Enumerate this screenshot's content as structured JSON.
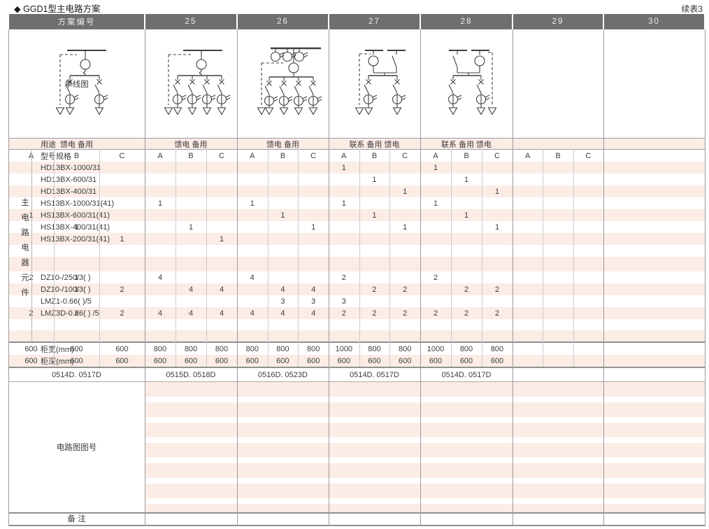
{
  "page": {
    "title": "◆ GGD1型主电路方案",
    "continuation": "续表3"
  },
  "colors": {
    "stripe_pink": "#fbece6",
    "header_bg": "#6f6f6f",
    "grid_line": "#9b9b9b",
    "diagram_stroke": "#3f3f3f"
  },
  "header": {
    "label": "方案编号",
    "schemes": [
      "25",
      "26",
      "27",
      "28",
      "29",
      "30"
    ]
  },
  "left": {
    "diagram_row_label": "单线图",
    "vertical_label": "主电路电器元件",
    "usage_label": "用途",
    "spec_label": "型号规格",
    "circuit_no_label": "电路图图号",
    "remarks_label": "备 注"
  },
  "rows": {
    "usage_values": [
      "馈电 备用",
      "馈电 备用",
      "馈电 备用",
      "联系 备用 馈电",
      "联系 备用 馈电",
      ""
    ],
    "subcols": [
      "A",
      "B",
      "C"
    ],
    "components": [
      {
        "name": "HD13BX-1000/31",
        "cells": [
          [
            "",
            "",
            ""
          ],
          [
            "",
            "",
            ""
          ],
          [
            "",
            "",
            ""
          ],
          [
            "1",
            "",
            ""
          ],
          [
            "1",
            "",
            ""
          ],
          [
            "",
            "",
            ""
          ]
        ]
      },
      {
        "name": "HD13BX-600/31",
        "cells": [
          [
            "",
            "",
            ""
          ],
          [
            "",
            "",
            ""
          ],
          [
            "",
            "",
            ""
          ],
          [
            "",
            "1",
            ""
          ],
          [
            "",
            "1",
            ""
          ],
          [
            "",
            "",
            ""
          ]
        ]
      },
      {
        "name": "HD13BX-400/31",
        "cells": [
          [
            "",
            "",
            ""
          ],
          [
            "",
            "",
            ""
          ],
          [
            "",
            "",
            ""
          ],
          [
            "",
            "",
            "1"
          ],
          [
            "",
            "",
            "1"
          ],
          [
            "",
            "",
            ""
          ]
        ]
      },
      {
        "name": "HS13BX-1000/31(41)",
        "cells": [
          [
            "",
            "",
            ""
          ],
          [
            "1",
            "",
            ""
          ],
          [
            "1",
            "",
            ""
          ],
          [
            "1",
            "",
            ""
          ],
          [
            "1",
            "",
            ""
          ],
          [
            "",
            "",
            ""
          ]
        ]
      },
      {
        "name": "HS13BX-600/31(41)",
        "cells": [
          [
            "1",
            "",
            ""
          ],
          [
            "",
            "",
            ""
          ],
          [
            "",
            "1",
            ""
          ],
          [
            "",
            "1",
            ""
          ],
          [
            "",
            "1",
            ""
          ],
          [
            "",
            "",
            ""
          ]
        ]
      },
      {
        "name": "HS13BX-400/31(41)",
        "cells": [
          [
            "",
            "1",
            ""
          ],
          [
            "",
            "1",
            ""
          ],
          [
            "",
            "",
            "1"
          ],
          [
            "",
            "",
            "1"
          ],
          [
            "",
            "",
            "1"
          ],
          [
            "",
            "",
            ""
          ]
        ]
      },
      {
        "name": "HS13BX-200/31(41)",
        "cells": [
          [
            "",
            "",
            "1"
          ],
          [
            "",
            "",
            "1"
          ],
          [
            "",
            "",
            ""
          ],
          [
            "",
            "",
            ""
          ],
          [
            "",
            "",
            ""
          ],
          [
            "",
            "",
            ""
          ]
        ]
      },
      {
        "name": "",
        "cells": [
          [
            "",
            "",
            ""
          ],
          [
            "",
            "",
            ""
          ],
          [
            "",
            "",
            ""
          ],
          [
            "",
            "",
            ""
          ],
          [
            "",
            "",
            ""
          ],
          [
            "",
            "",
            ""
          ]
        ]
      },
      {
        "name": "",
        "cells": [
          [
            "",
            "",
            ""
          ],
          [
            "",
            "",
            ""
          ],
          [
            "",
            "",
            ""
          ],
          [
            "",
            "",
            ""
          ],
          [
            "",
            "",
            ""
          ],
          [
            "",
            "",
            ""
          ]
        ]
      },
      {
        "name": "DZ10-/250/3( )",
        "cells": [
          [
            "2",
            "1",
            ""
          ],
          [
            "4",
            "",
            ""
          ],
          [
            "4",
            "",
            ""
          ],
          [
            "2",
            "",
            ""
          ],
          [
            "2",
            "",
            ""
          ],
          [
            "",
            "",
            ""
          ]
        ]
      },
      {
        "name": "DZ10-/100/3( )",
        "cells": [
          [
            "",
            "1",
            "2"
          ],
          [
            "",
            "4",
            "4"
          ],
          [
            "",
            "4",
            "4"
          ],
          [
            "",
            "2",
            "2"
          ],
          [
            "",
            "2",
            "2"
          ],
          [
            "",
            "",
            ""
          ]
        ]
      },
      {
        "name": "LMZ1-0.66( )/5",
        "cells": [
          [
            "",
            "",
            ""
          ],
          [
            "",
            "",
            ""
          ],
          [
            "",
            "3",
            "3"
          ],
          [
            "3",
            "",
            ""
          ],
          [
            "",
            "",
            ""
          ],
          [
            "",
            "",
            ""
          ]
        ]
      },
      {
        "name": "LMZ3D-0.66( ) /5",
        "cells": [
          [
            "2",
            "2",
            "2"
          ],
          [
            "4",
            "4",
            "4"
          ],
          [
            "4",
            "4",
            "4"
          ],
          [
            "2",
            "2",
            "2"
          ],
          [
            "2",
            "2",
            "2"
          ],
          [
            "",
            "",
            ""
          ]
        ]
      },
      {
        "name": "",
        "cells": [
          [
            "",
            "",
            ""
          ],
          [
            "",
            "",
            ""
          ],
          [
            "",
            "",
            ""
          ],
          [
            "",
            "",
            ""
          ],
          [
            "",
            "",
            ""
          ],
          [
            "",
            "",
            ""
          ]
        ]
      },
      {
        "name": "",
        "cells": [
          [
            "",
            "",
            ""
          ],
          [
            "",
            "",
            ""
          ],
          [
            "",
            "",
            ""
          ],
          [
            "",
            "",
            ""
          ],
          [
            "",
            "",
            ""
          ],
          [
            "",
            "",
            ""
          ]
        ]
      }
    ],
    "cabinet_width": {
      "label": "柜宽(mm)",
      "values": [
        [
          "600",
          "600",
          "600"
        ],
        [
          "800",
          "800",
          "800"
        ],
        [
          "800",
          "800",
          "800"
        ],
        [
          "1000",
          "800",
          "800"
        ],
        [
          "1000",
          "800",
          "800"
        ],
        [
          "",
          "",
          ""
        ]
      ]
    },
    "cabinet_depth": {
      "label": "柜深(mm)",
      "values": [
        [
          "600",
          "600",
          "600"
        ],
        [
          "600",
          "600",
          "600"
        ],
        [
          "600",
          "600",
          "600"
        ],
        [
          "600",
          "600",
          "600"
        ],
        [
          "600",
          "600",
          "600"
        ],
        [
          "",
          "",
          ""
        ]
      ]
    },
    "diagram_no_values": [
      "0514D. 0517D",
      "0515D. 0518D",
      "0516D. 0523D",
      "0514D. 0517D",
      "0514D. 0517D",
      ""
    ]
  },
  "diagrams": [
    {
      "scheme": "25",
      "bus": "single",
      "branches": 2,
      "bus_cts": 0,
      "reserve_dashed": "left"
    },
    {
      "scheme": "26",
      "bus": "single",
      "branches": 4,
      "bus_cts": 0,
      "reserve_dashed": "left"
    },
    {
      "scheme": "27",
      "bus": "single",
      "branches": 4,
      "bus_cts": 3,
      "reserve_dashed": "left"
    },
    {
      "scheme": "28",
      "bus": "sectional",
      "breaker": "left",
      "branches": 2,
      "reserve_dashed": "left"
    },
    {
      "scheme": "29",
      "bus": "sectional",
      "breaker": "right",
      "branches": 2,
      "reserve_dashed": "right"
    },
    null
  ]
}
